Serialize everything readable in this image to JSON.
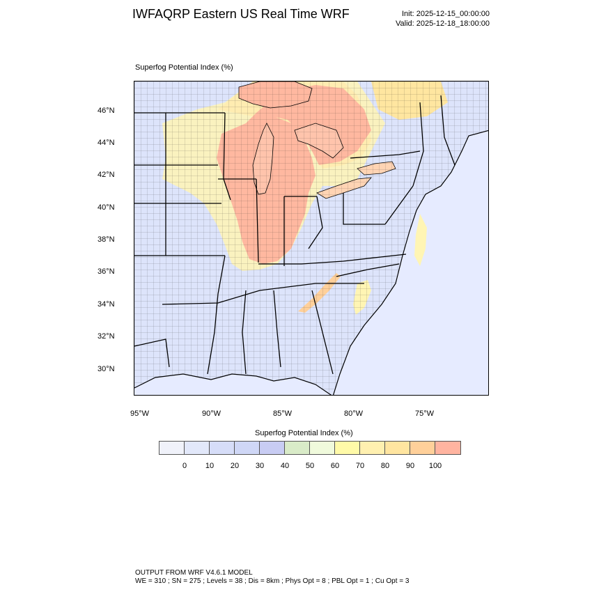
{
  "header": {
    "title": "IWFAQRP Eastern US Real Time WRF",
    "init": "Init: 2025-12-15_00:00:00",
    "valid": "Valid: 2025-12-18_18:00:00"
  },
  "map": {
    "field_label": "Superfog Potential Index   (%)",
    "lat_labels": [
      "46°N",
      "44°N",
      "42°N",
      "40°N",
      "38°N",
      "36°N",
      "34°N",
      "32°N",
      "30°N"
    ],
    "lon_labels": [
      "95°W",
      "90°W",
      "85°W",
      "80°W",
      "75°W"
    ],
    "colors": {
      "background": "#e6ebff",
      "land_low": "#dde4fb",
      "high": "#ffb8a0",
      "mid": "#ffe6a0",
      "yellow": "#fff5b4",
      "ocean": "#e6ebff",
      "lake": "#c6cfff",
      "border": "#000000"
    }
  },
  "colorbar": {
    "title": "Superfog Potential Index  (%)",
    "colors": [
      "#f0f2fa",
      "#e2e8fa",
      "#d6ddf8",
      "#cfd7f6",
      "#c8ccf3",
      "#d9ebc8",
      "#f0fadc",
      "#fffaa8",
      "#fff0b0",
      "#ffe5a0",
      "#ffd09a",
      "#ffb4a0"
    ],
    "ticks": [
      "0",
      "10",
      "20",
      "30",
      "40",
      "50",
      "60",
      "70",
      "80",
      "90",
      "100"
    ]
  },
  "footer": {
    "line1": "OUTPUT FROM WRF V4.6.1 MODEL",
    "line2": "WE = 310 ; SN = 275 ; Levels = 38 ; Dis = 8km ; Phys Opt = 8 ; PBL Opt = 1 ; Cu Opt = 3"
  }
}
